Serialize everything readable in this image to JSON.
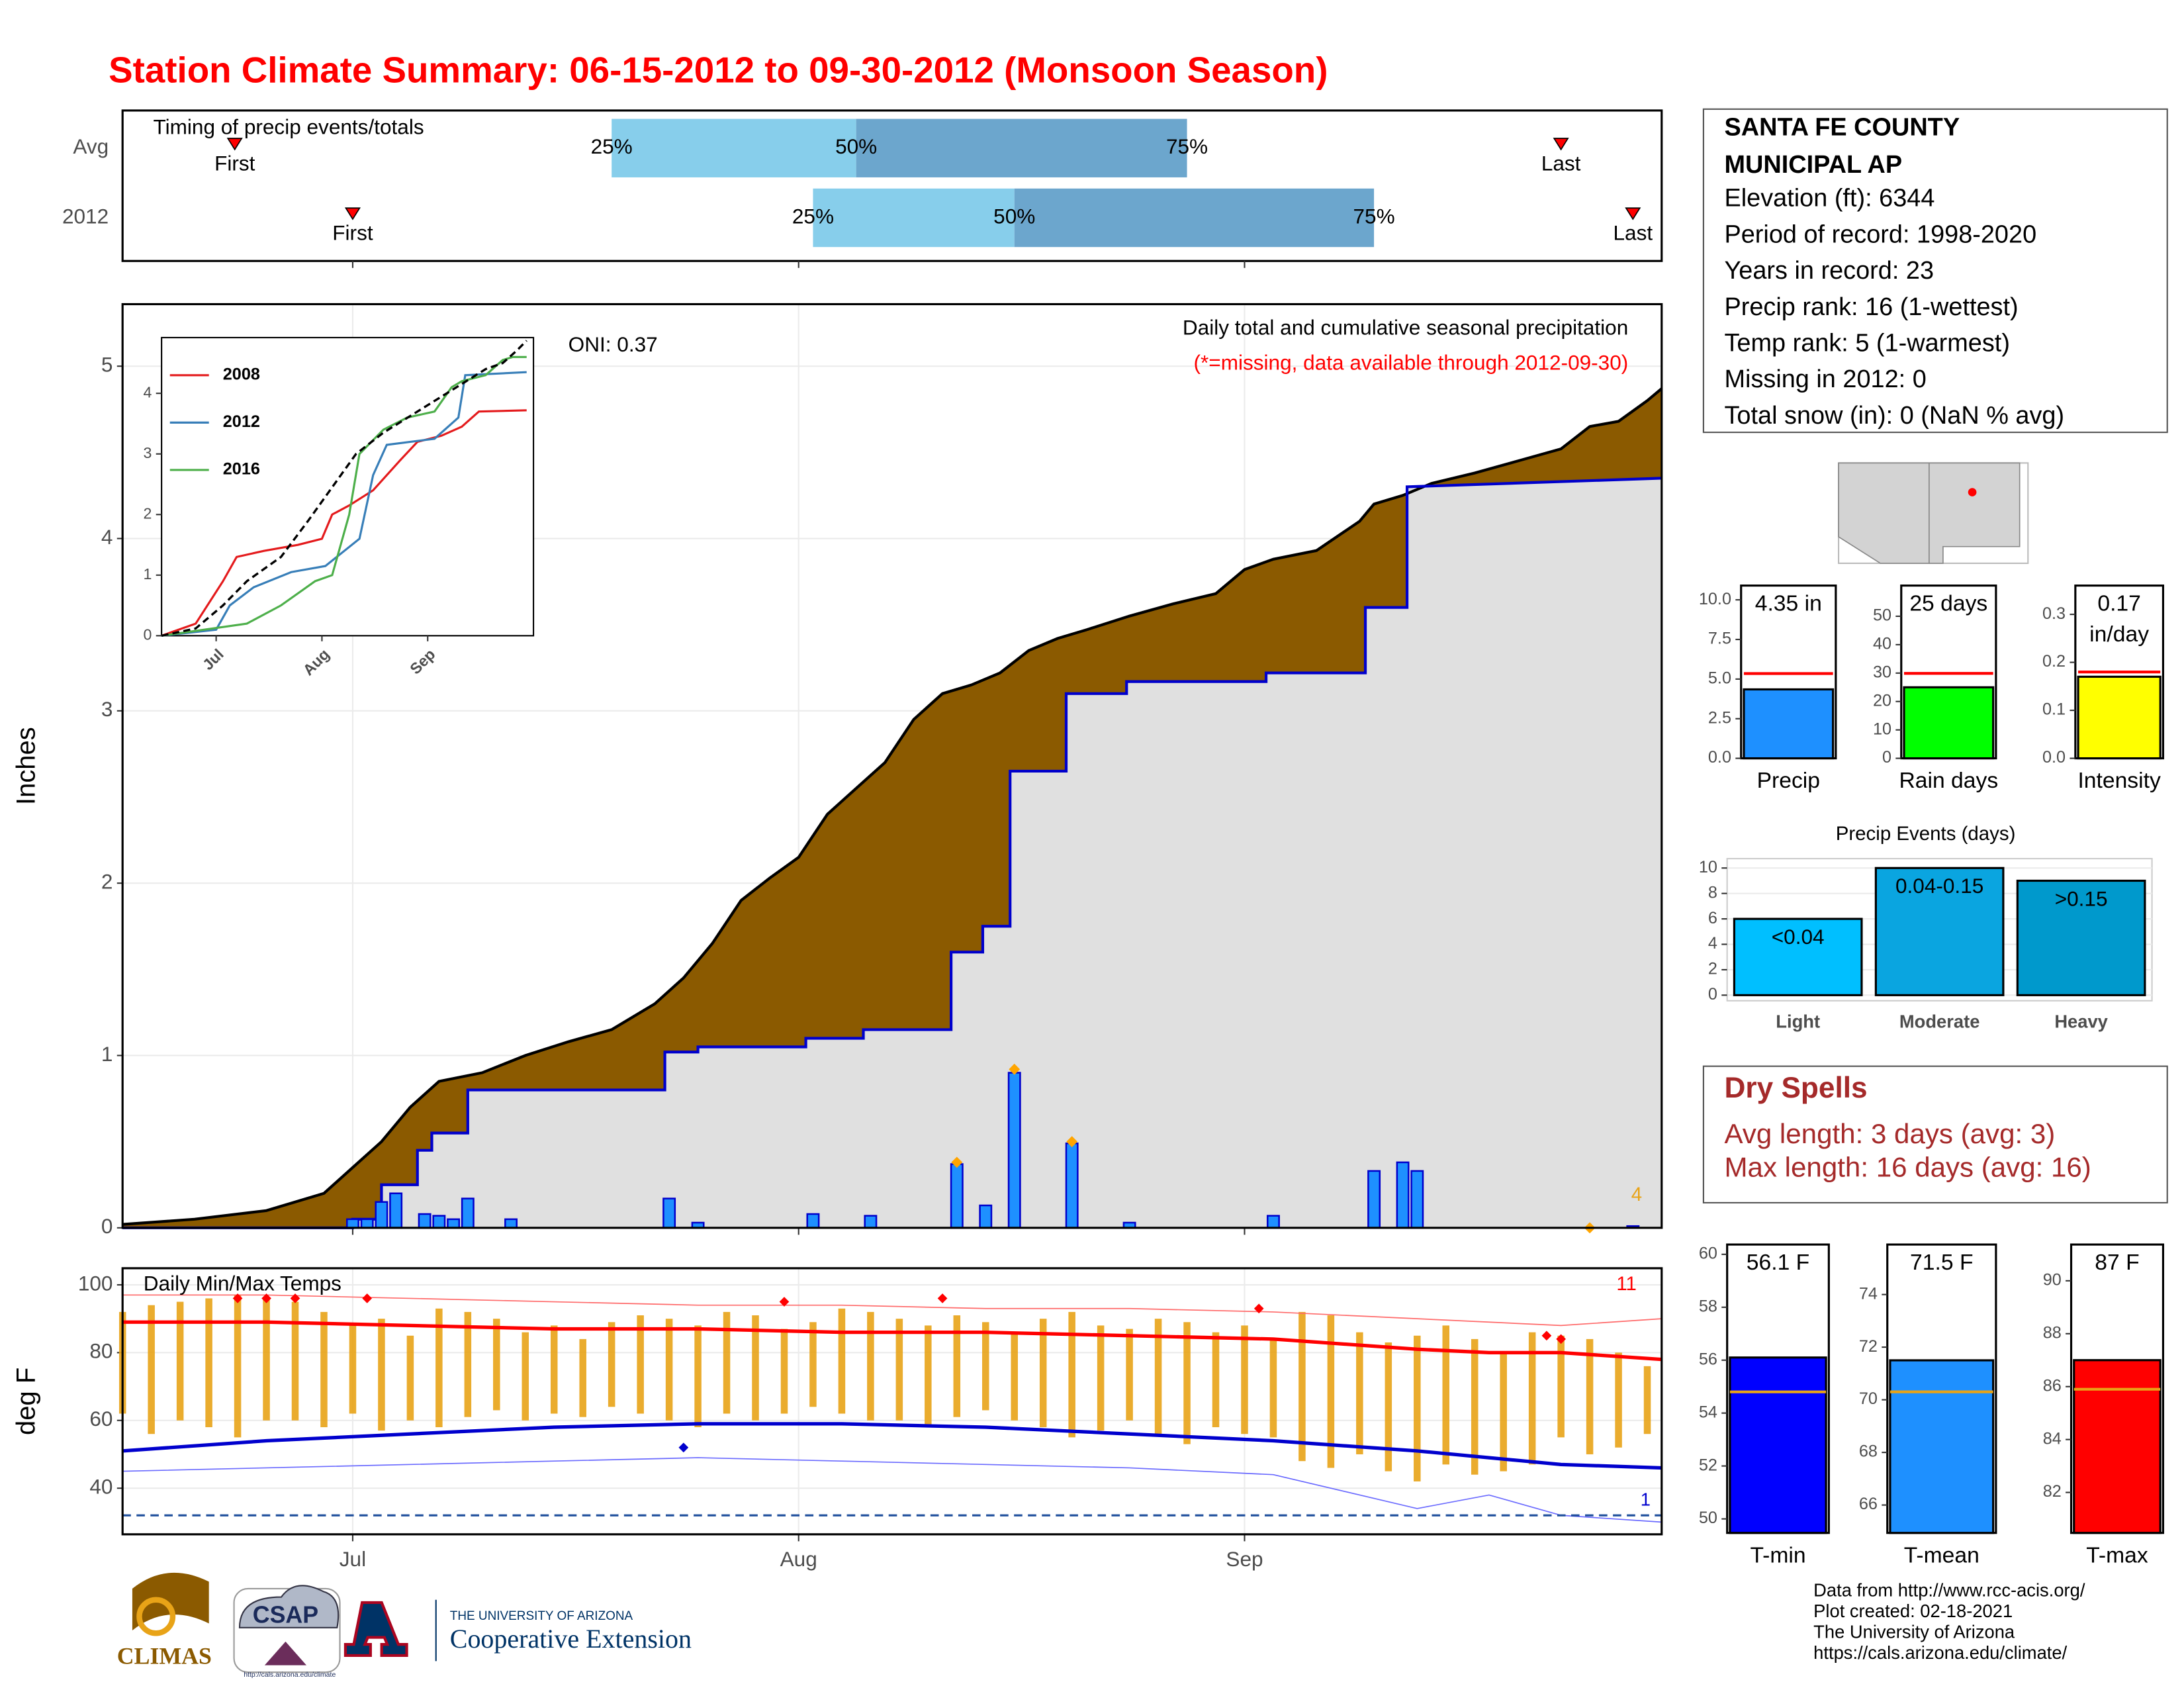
{
  "title": "Station Climate Summary: 06-15-2012 to 09-30-2012 (Monsoon Season)",
  "info": {
    "title_lines": [
      "SANTA FE COUNTY",
      "MUNICIPAL AP"
    ],
    "lines": [
      "Elevation (ft): 6344",
      "Period of record: 1998-2020",
      "Years in record: 23",
      "Precip rank: 16 (1-wettest)",
      "Temp rank: 5 (1-warmest)",
      "Missing in 2012: 0",
      "Total snow (in): 0 (NaN % avg)"
    ]
  },
  "dry_spells": {
    "title": "Dry Spells",
    "lines": [
      "Avg length: 3 days (avg: 3)",
      "Max length: 16 days (avg: 16)"
    ]
  },
  "footer": [
    "Data from http://www.rcc-acis.org/",
    "Plot created: 02-18-2021",
    "The University of Arizona",
    "https://cals.arizona.edu/climate/"
  ],
  "logos": {
    "climas": "CLIMAS",
    "csap": "CSAP",
    "csap_url": "http://cals.arizona.edu/climate",
    "ua": "THE UNIVERSITY OF ARIZONA",
    "coop": "Cooperative Extension"
  },
  "chart_data": [
    {
      "type": "timing",
      "title": "Timing of precip events/totals",
      "categories": [
        "Avg",
        "2012"
      ],
      "rows": [
        {
          "first": 7.8,
          "q25": 34,
          "q50": 51,
          "q75": 74,
          "last": 100
        },
        {
          "first": 16,
          "q25": 48,
          "q50": 62,
          "q75": 87,
          "last": 105
        }
      ],
      "marker_labels": {
        "first": "First",
        "last": "Last",
        "q25": "25%",
        "q50": "50%",
        "q75": "75%"
      },
      "colors": {
        "q25_q50": "#87ceeb",
        "q50_q75": "#6ca6cd",
        "marker": "#ff0000"
      },
      "xlim": [
        0,
        107
      ]
    },
    {
      "type": "precip",
      "title": "Daily total and cumulative seasonal precipitation",
      "note": "(*=missing, data available through 2012-09-30)",
      "oni": "ONI: 0.37",
      "y_label": "Inches",
      "count_label": 4,
      "xlim": [
        0,
        107
      ],
      "ylim": [
        0,
        5.36
      ],
      "yticks": [
        0,
        1,
        2,
        3,
        4,
        5
      ],
      "grid": true,
      "average": {
        "color": "#8b5a00",
        "x": [
          0,
          5,
          10,
          14,
          16,
          18,
          20,
          22,
          25,
          28,
          31,
          34,
          37,
          39,
          41,
          43,
          45,
          47,
          49,
          51,
          53,
          55,
          57,
          59,
          61,
          63,
          65,
          67,
          70,
          73,
          76,
          78,
          80,
          83,
          86,
          87,
          89,
          91,
          94,
          97,
          100,
          102,
          104,
          106,
          107
        ],
        "values": [
          0.02,
          0.05,
          0.1,
          0.2,
          0.35,
          0.5,
          0.7,
          0.85,
          0.9,
          1.0,
          1.08,
          1.15,
          1.3,
          1.45,
          1.65,
          1.9,
          2.03,
          2.15,
          2.4,
          2.55,
          2.7,
          2.95,
          3.1,
          3.15,
          3.22,
          3.35,
          3.42,
          3.47,
          3.55,
          3.62,
          3.68,
          3.82,
          3.88,
          3.93,
          4.1,
          4.2,
          4.25,
          4.32,
          4.38,
          4.45,
          4.52,
          4.65,
          4.68,
          4.8,
          4.87
        ]
      },
      "cumulative": {
        "color": "#0000cc",
        "fill": "#e0e0e0",
        "x": [
          0,
          16,
          16,
          18,
          18,
          20.5,
          20.5,
          21.5,
          21.5,
          24,
          24,
          37.7,
          37.7,
          40,
          40,
          47.5,
          47.5,
          51.5,
          51.5,
          57.6,
          57.6,
          59.8,
          59.8,
          61.7,
          61.7,
          65.6,
          65.6,
          69.8,
          69.8,
          79.5,
          79.5,
          86.4,
          86.4,
          89.3,
          89.3,
          107
        ],
        "values": [
          0,
          0,
          0.05,
          0.05,
          0.25,
          0.25,
          0.45,
          0.45,
          0.55,
          0.55,
          0.8,
          0.8,
          1.02,
          1.02,
          1.05,
          1.05,
          1.1,
          1.1,
          1.15,
          1.15,
          1.6,
          1.6,
          1.75,
          1.75,
          2.65,
          2.65,
          3.1,
          3.1,
          3.17,
          3.17,
          3.22,
          3.22,
          3.6,
          3.6,
          4.3,
          4.35
        ]
      },
      "daily": {
        "color": "#1e90ff",
        "x": [
          16,
          17,
          18,
          19,
          21,
          22,
          23,
          24,
          27,
          38,
          40,
          48,
          52,
          58,
          60,
          62,
          66,
          70,
          80,
          87,
          89,
          90,
          105
        ],
        "values": [
          0.05,
          0.05,
          0.15,
          0.2,
          0.08,
          0.07,
          0.05,
          0.17,
          0.05,
          0.17,
          0.03,
          0.08,
          0.07,
          0.37,
          0.13,
          0.9,
          0.49,
          0.03,
          0.07,
          0.33,
          0.38,
          0.33,
          0.01
        ]
      },
      "highlights": {
        "color": "#ffa500",
        "x": [
          58,
          62,
          66,
          102
        ],
        "values": [
          0.38,
          0.92,
          0.5,
          0
        ]
      }
    },
    {
      "type": "line",
      "xlim": [
        0,
        109
      ],
      "ylim": [
        0,
        4.92
      ],
      "yticks": [
        0,
        1,
        2,
        3,
        4
      ],
      "xticks": [
        {
          "value": 16,
          "label": "Jul"
        },
        {
          "value": 47,
          "label": "Aug"
        },
        {
          "value": 78,
          "label": "Sep"
        }
      ],
      "series": [
        {
          "name": "2008",
          "color": "#e41a1c",
          "x": [
            0,
            10,
            18,
            22,
            30,
            40,
            47,
            50,
            55,
            62,
            70,
            75,
            82,
            88,
            93,
            107
          ],
          "values": [
            0,
            0.2,
            0.9,
            1.3,
            1.4,
            1.5,
            1.6,
            2.0,
            2.15,
            2.4,
            2.9,
            3.2,
            3.3,
            3.45,
            3.7,
            3.72
          ]
        },
        {
          "name": "2012",
          "color": "#377eb8",
          "x": [
            0,
            16,
            20,
            27,
            38,
            48,
            58,
            62,
            66,
            80,
            87,
            89,
            107
          ],
          "values": [
            0,
            0.1,
            0.5,
            0.8,
            1.05,
            1.15,
            1.6,
            2.65,
            3.15,
            3.25,
            3.6,
            4.3,
            4.35
          ]
        },
        {
          "name": "2016",
          "color": "#4daf4a",
          "x": [
            0,
            25,
            35,
            45,
            50,
            55,
            58,
            65,
            72,
            80,
            85,
            88,
            95,
            100,
            103,
            107
          ],
          "values": [
            0,
            0.2,
            0.5,
            0.9,
            1.0,
            2.0,
            3.0,
            3.4,
            3.6,
            3.7,
            4.1,
            4.2,
            4.3,
            4.55,
            4.6,
            4.6
          ]
        }
      ],
      "average": {
        "color": "#000000",
        "x": [
          0,
          10,
          18,
          25,
          35,
          43,
          50,
          57,
          65,
          75,
          85,
          95,
          100,
          104,
          107
        ],
        "values": [
          0,
          0.12,
          0.5,
          0.9,
          1.3,
          1.9,
          2.45,
          3.0,
          3.35,
          3.7,
          4.05,
          4.4,
          4.5,
          4.7,
          4.87
        ]
      }
    },
    {
      "type": "temperature",
      "title": "Daily Min/Max Temps",
      "y_label": "deg F",
      "xlim": [
        0,
        107
      ],
      "ylim": [
        26.4,
        104.9
      ],
      "yticks": [
        40,
        60,
        80,
        100
      ],
      "xticks": [
        {
          "value": 16,
          "label": "Jul"
        },
        {
          "value": 47,
          "label": "Aug"
        },
        {
          "value": 78,
          "label": "Sep"
        }
      ],
      "grid": true,
      "bar_color": "#e8a317",
      "x": [
        0,
        2,
        4,
        6,
        8,
        10,
        12,
        14,
        16,
        18,
        20,
        22,
        24,
        26,
        28,
        30,
        32,
        34,
        36,
        38,
        40,
        42,
        44,
        46,
        48,
        50,
        52,
        54,
        56,
        58,
        60,
        62,
        64,
        66,
        68,
        70,
        72,
        74,
        76,
        78,
        80,
        82,
        84,
        86,
        88,
        90,
        92,
        94,
        96,
        98,
        100,
        102,
        104,
        106
      ],
      "lows": [
        62,
        56,
        60,
        58,
        55,
        60,
        60,
        58,
        62,
        57,
        60,
        58,
        61,
        63,
        60,
        62,
        61,
        64,
        62,
        60,
        58,
        62,
        60,
        62,
        64,
        62,
        60,
        60,
        58,
        61,
        63,
        60,
        58,
        55,
        57,
        60,
        56,
        53,
        58,
        56,
        55,
        48,
        46,
        50,
        45,
        42,
        47,
        44,
        45,
        47,
        55,
        50,
        52,
        56
      ],
      "highs": [
        92,
        94,
        95,
        96,
        97,
        96,
        95,
        92,
        88,
        90,
        85,
        93,
        92,
        90,
        86,
        88,
        84,
        89,
        91,
        90,
        88,
        92,
        91,
        87,
        89,
        93,
        92,
        90,
        88,
        91,
        89,
        86,
        90,
        92,
        88,
        87,
        90,
        89,
        86,
        88,
        84,
        92,
        91,
        86,
        83,
        85,
        88,
        84,
        80,
        86,
        85,
        84,
        80,
        76
      ],
      "lines": [
        {
          "color": "#ff0000",
          "width": 2.5,
          "x": [
            0,
            10,
            20,
            30,
            40,
            50,
            60,
            70,
            80,
            90,
            95,
            100,
            107
          ],
          "values": [
            89,
            89,
            88,
            87,
            87,
            86,
            86,
            85,
            84,
            81,
            80,
            80,
            78
          ]
        },
        {
          "color": "#0000cd",
          "width": 2.5,
          "x": [
            0,
            10,
            20,
            30,
            40,
            50,
            60,
            70,
            80,
            90,
            95,
            100,
            107
          ],
          "values": [
            51,
            54,
            56,
            58,
            59,
            59,
            58,
            56,
            54,
            51,
            49,
            47,
            46
          ]
        },
        {
          "color": "#ff6a6a",
          "width": 0.8,
          "x": [
            0,
            10,
            20,
            30,
            40,
            50,
            60,
            70,
            80,
            90,
            95,
            100,
            107
          ],
          "values": [
            97,
            97,
            96,
            95,
            94,
            94,
            93,
            93,
            92,
            90,
            89,
            88,
            90
          ]
        },
        {
          "color": "#6a6aff",
          "width": 0.8,
          "x": [
            0,
            10,
            20,
            30,
            40,
            50,
            60,
            70,
            80,
            90,
            95,
            100,
            107
          ],
          "values": [
            45,
            46,
            47,
            48,
            49,
            48,
            47,
            46,
            44,
            34,
            38,
            32,
            30
          ]
        }
      ],
      "freeze_line": 32,
      "record_highs": {
        "color": "#ff0000",
        "x": [
          8,
          10,
          12,
          17,
          46,
          57,
          79,
          99,
          100
        ],
        "values": [
          96,
          96,
          96,
          96,
          95,
          96,
          93,
          85,
          84
        ]
      },
      "record_lows": {
        "color": "#0000cd",
        "x": [
          39
        ],
        "values": [
          52
        ]
      },
      "record_high_count": 11,
      "record_low_count": 1
    },
    {
      "type": "bar",
      "categories": [
        "Precip"
      ],
      "values": [
        4.35
      ],
      "value_labels": [
        "4.35 in"
      ],
      "color": "#1e90ff",
      "reference": 5.35,
      "reference_color": "#ff0000",
      "ylim": [
        0,
        10.9
      ],
      "yticks": [
        {
          "value": 0,
          "label": "0.0"
        },
        {
          "value": 2.5,
          "label": "2.5"
        },
        {
          "value": 5,
          "label": "5.0"
        },
        {
          "value": 7.5,
          "label": "7.5"
        },
        {
          "value": 10,
          "label": "10.0"
        }
      ]
    },
    {
      "type": "bar",
      "categories": [
        "Rain days"
      ],
      "values": [
        25
      ],
      "value_labels": [
        "25 days"
      ],
      "color": "#00ff00",
      "reference": 29.9,
      "reference_color": "#ff0000",
      "ylim": [
        0,
        60.8
      ],
      "yticks": [
        0,
        10,
        20,
        30,
        40,
        50
      ]
    },
    {
      "type": "bar",
      "categories": [
        "Intensity"
      ],
      "values": [
        0.17
      ],
      "value_labels": [
        "0.17 in/day"
      ],
      "color": "#ffff00",
      "reference": 0.18,
      "reference_color": "#ff0000",
      "ylim": [
        0,
        0.36
      ],
      "yticks": [
        {
          "value": 0,
          "label": "0.0"
        },
        0.1,
        0.2,
        0.3
      ]
    },
    {
      "type": "bar",
      "title": "Precip Events (days)",
      "categories": [
        "Light",
        "Moderate",
        "Heavy"
      ],
      "values": [
        6,
        10,
        9
      ],
      "bin_labels": [
        "<0.04",
        "0.04-0.15",
        ">0.15"
      ],
      "colors": [
        "#00bfff",
        "#0aa5e0",
        "#0099cc"
      ],
      "grid": true,
      "ylim": [
        0,
        10.3
      ],
      "yticks": [
        0,
        2,
        4,
        6,
        8,
        10
      ]
    },
    {
      "type": "bar",
      "categories": [
        "T-min"
      ],
      "values": [
        56.1
      ],
      "value_labels": [
        "56.1 F"
      ],
      "color": "#0000ff",
      "reference": 54.8,
      "reference_color": "#e8a317",
      "ylim": [
        49.47,
        60.37
      ],
      "yticks": [
        50,
        52,
        54,
        56,
        58,
        60
      ]
    },
    {
      "type": "bar",
      "categories": [
        "T-mean"
      ],
      "values": [
        71.5
      ],
      "value_labels": [
        "71.5 F"
      ],
      "color": "#1e90ff",
      "reference": 70.3,
      "reference_color": "#e8a317",
      "ylim": [
        64.94,
        75.9
      ],
      "yticks": [
        66,
        68,
        70,
        72,
        74
      ]
    },
    {
      "type": "bar",
      "categories": [
        "T-max"
      ],
      "values": [
        87
      ],
      "value_labels": [
        "87 F"
      ],
      "color": "#ff0000",
      "reference": 85.9,
      "reference_color": "#e8a317",
      "ylim": [
        80.47,
        91.37
      ],
      "yticks": [
        82,
        84,
        86,
        88,
        90
      ]
    }
  ]
}
